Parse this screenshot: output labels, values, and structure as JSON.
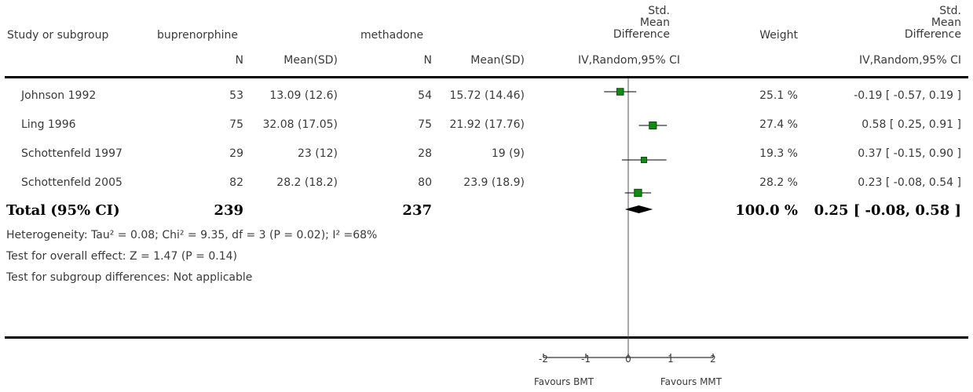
{
  "header": {
    "study_col": "Study or subgroup",
    "group1_name": "buprenorphine",
    "group2_name": "methadone",
    "n_label": "N",
    "mean_sd_label": "Mean(SD)",
    "smd_header_lines": [
      "Std.",
      "Mean",
      "Difference"
    ],
    "smd_method": "IV,Random,95% CI",
    "weight_col": "Weight",
    "effect_header_lines": [
      "Std.",
      "Mean",
      "Difference"
    ],
    "effect_method": "IV,Random,95% CI"
  },
  "studies": [
    {
      "name": "Johnson 1992",
      "n1": "53",
      "ms1": "13.09 (12.6)",
      "n2": "54",
      "ms2": "15.72 (14.46)",
      "weight": "25.1 %",
      "ci_text": "-0.19 [ -0.57, 0.19 ]"
    },
    {
      "name": "Ling 1996",
      "n1": "75",
      "ms1": "32.08 (17.05)",
      "n2": "75",
      "ms2": "21.92 (17.76)",
      "weight": "27.4 %",
      "ci_text": "0.58 [ 0.25, 0.91 ]"
    },
    {
      "name": "Schottenfeld 1997",
      "n1": "29",
      "ms1": "23 (12)",
      "n2": "28",
      "ms2": "19 (9)",
      "weight": "19.3 %",
      "ci_text": "0.37 [ -0.15, 0.90 ]"
    },
    {
      "name": "Schottenfeld 2005",
      "n1": "82",
      "ms1": "28.2 (18.2)",
      "n2": "80",
      "ms2": "23.9 (18.9)",
      "weight": "28.2 %",
      "ci_text": "0.23 [ -0.08, 0.54 ]"
    }
  ],
  "total": {
    "label": "Total (95% CI)",
    "n1": "239",
    "n2": "237",
    "weight": "100.0 %",
    "ci_text": "0.25 [ -0.08, 0.58 ]"
  },
  "footnotes": {
    "heterogeneity": "Heterogeneity: Tau² = 0.08; Chi² = 9.35, df = 3 (P = 0.02); I² =68%",
    "overall_effect": "Test for overall effect: Z = 1.47 (P = 0.14)",
    "subgroup_diff": "Test for subgroup differences: Not applicable"
  },
  "axis": {
    "favours_left": "Favours BMT",
    "favours_right": "Favours MMT"
  },
  "colors": {
    "marker": "#138a13",
    "ci_line": "#000000",
    "diamond": "#000000",
    "text": "#3a3a3a"
  },
  "chart_data": {
    "type": "forest",
    "xlim": [
      -2,
      2
    ],
    "ticks": [
      -2,
      -1,
      0,
      1,
      2
    ],
    "tick_labels": [
      "-2",
      "-1",
      "0",
      "1",
      "2"
    ],
    "xlabel_left": "Favours BMT",
    "xlabel_right": "Favours MMT",
    "studies": [
      {
        "name": "Johnson 1992",
        "estimate": -0.19,
        "lower": -0.57,
        "upper": 0.19,
        "weight": 25.1
      },
      {
        "name": "Ling 1996",
        "estimate": 0.58,
        "lower": 0.25,
        "upper": 0.91,
        "weight": 27.4
      },
      {
        "name": "Schottenfeld 1997",
        "estimate": 0.37,
        "lower": -0.15,
        "upper": 0.9,
        "weight": 19.3
      },
      {
        "name": "Schottenfeld 2005",
        "estimate": 0.23,
        "lower": -0.08,
        "upper": 0.54,
        "weight": 28.2
      }
    ],
    "pooled": {
      "name": "Total (95% CI)",
      "estimate": 0.25,
      "lower": -0.08,
      "upper": 0.58,
      "weight": 100.0
    }
  }
}
